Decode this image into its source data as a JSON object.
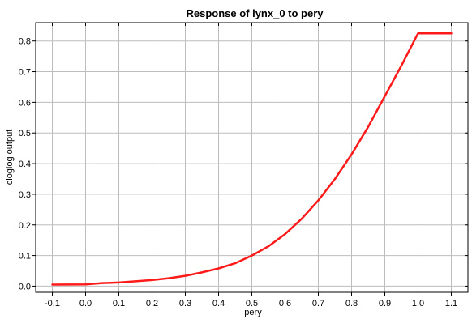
{
  "chart_data": {
    "type": "line",
    "title": "Response of lynx_0 to pery",
    "xlabel": "pery",
    "ylabel": "cloglog output",
    "xlim": [
      -0.15,
      1.15
    ],
    "ylim": [
      -0.02,
      0.86
    ],
    "xticks": [
      -0.1,
      0.0,
      0.1,
      0.2,
      0.3,
      0.4,
      0.5,
      0.6,
      0.7,
      0.8,
      0.9,
      1.0,
      1.1
    ],
    "xtick_labels": [
      "-0.1",
      "0.0",
      "0.1",
      "0.2",
      "0.3",
      "0.4",
      "0.5",
      "0.6",
      "0.7",
      "0.8",
      "0.9",
      "1.0",
      "1.1"
    ],
    "yticks": [
      0.0,
      0.1,
      0.2,
      0.3,
      0.4,
      0.5,
      0.6,
      0.7,
      0.8
    ],
    "ytick_labels": [
      "0.0",
      "0.1",
      "0.2",
      "0.3",
      "0.4",
      "0.5",
      "0.6",
      "0.7",
      "0.8"
    ],
    "grid": true,
    "series": [
      {
        "color": "#ff1a1a",
        "x": [
          -0.1,
          0.0,
          0.05,
          0.1,
          0.15,
          0.2,
          0.25,
          0.3,
          0.35,
          0.4,
          0.45,
          0.5,
          0.55,
          0.6,
          0.65,
          0.7,
          0.75,
          0.8,
          0.85,
          0.9,
          0.95,
          1.0,
          1.1
        ],
        "y": [
          0.005,
          0.006,
          0.01,
          0.012,
          0.016,
          0.02,
          0.026,
          0.034,
          0.045,
          0.058,
          0.075,
          0.1,
          0.13,
          0.17,
          0.22,
          0.28,
          0.35,
          0.43,
          0.52,
          0.62,
          0.72,
          0.825,
          0.825
        ]
      }
    ]
  }
}
